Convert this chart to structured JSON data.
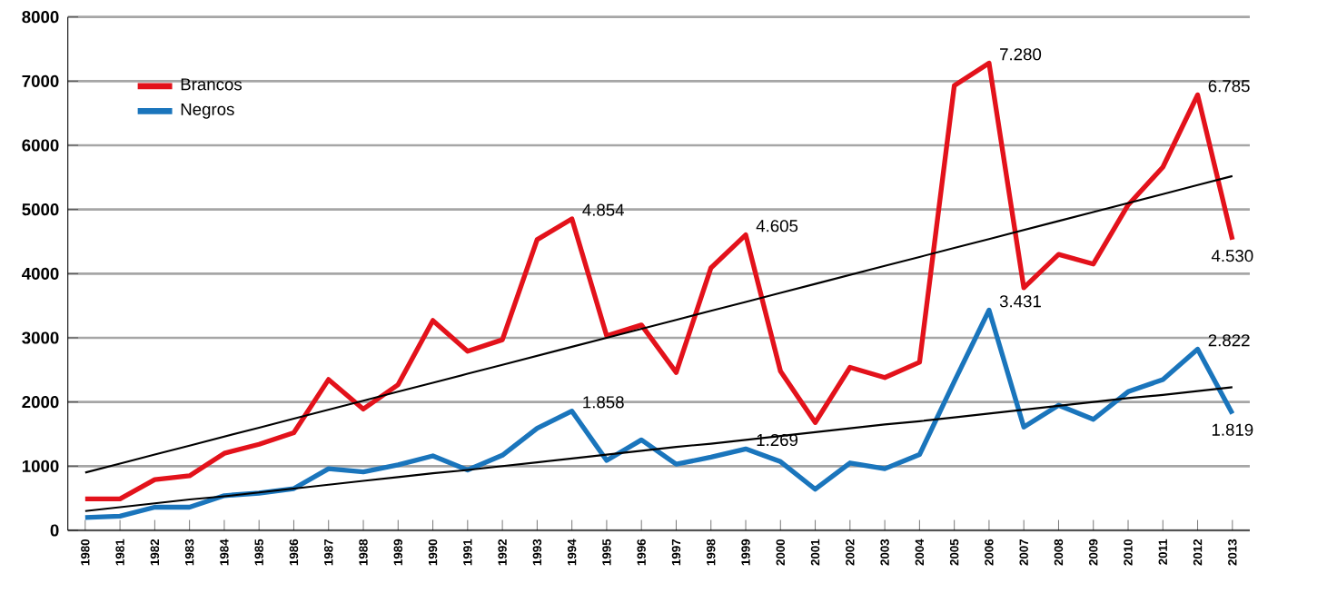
{
  "chart_data": {
    "type": "line",
    "categories": [
      "1980",
      "1981",
      "1982",
      "1983",
      "1984",
      "1985",
      "1986",
      "1987",
      "1988",
      "1989",
      "1990",
      "1991",
      "1992",
      "1993",
      "1994",
      "1995",
      "1996",
      "1997",
      "1998",
      "1999",
      "2000",
      "2001",
      "2002",
      "2003",
      "2004",
      "2005",
      "2006",
      "2007",
      "2008",
      "2009",
      "2010",
      "2011",
      "2012",
      "2013"
    ],
    "series": [
      {
        "name": "Brancos",
        "color": "#e3121b",
        "values": [
          490,
          490,
          790,
          850,
          1200,
          1340,
          1520,
          2350,
          1890,
          2270,
          3270,
          2790,
          2970,
          4530,
          4854,
          3030,
          3200,
          2460,
          4090,
          4605,
          2480,
          1680,
          2540,
          2380,
          2620,
          6930,
          7280,
          3780,
          4300,
          4150,
          5070,
          5660,
          6785,
          4530
        ],
        "value_labels": [
          null,
          null,
          null,
          null,
          null,
          null,
          null,
          null,
          null,
          null,
          null,
          null,
          null,
          null,
          "4.854",
          null,
          null,
          null,
          null,
          "4.605",
          null,
          null,
          null,
          null,
          null,
          null,
          "7.280",
          null,
          null,
          null,
          null,
          null,
          "6.785",
          "4.530"
        ]
      },
      {
        "name": "Negros",
        "color": "#1a75bc",
        "values": [
          200,
          220,
          360,
          360,
          540,
          580,
          650,
          960,
          910,
          1020,
          1160,
          940,
          1170,
          1590,
          1858,
          1090,
          1410,
          1030,
          1140,
          1269,
          1070,
          640,
          1050,
          960,
          1180,
          2320,
          3431,
          1610,
          1950,
          1730,
          2160,
          2350,
          2822,
          1819
        ],
        "value_labels": [
          null,
          null,
          null,
          null,
          null,
          null,
          null,
          null,
          null,
          null,
          null,
          null,
          null,
          null,
          "1.858",
          null,
          null,
          null,
          null,
          "1.269",
          null,
          null,
          null,
          null,
          null,
          null,
          "3.431",
          null,
          null,
          null,
          null,
          null,
          "2.822",
          "1.819"
        ]
      },
      {
        "color": "#000000",
        "values": [
          900,
          1040,
          1180,
          1320,
          1460,
          1600,
          1740,
          1880,
          2020,
          2160,
          2300,
          2440,
          2580,
          2720,
          2860,
          3000,
          3140,
          3280,
          3420,
          3560,
          3700,
          3840,
          3980,
          4120,
          4260,
          4400,
          4540,
          4680,
          4820,
          4960,
          5100,
          5240,
          5380,
          5520
        ]
      },
      {
        "color": "#000000",
        "values": [
          300,
          360,
          420,
          480,
          530,
          590,
          650,
          710,
          770,
          830,
          890,
          940,
          1000,
          1060,
          1120,
          1180,
          1240,
          1300,
          1350,
          1410,
          1470,
          1530,
          1590,
          1650,
          1700,
          1760,
          1820,
          1880,
          1940,
          2000,
          2060,
          2110,
          2170,
          2230
        ]
      }
    ],
    "ylim": [
      0,
      8000
    ],
    "yticks": [
      0,
      1000,
      2000,
      3000,
      4000,
      5000,
      6000,
      7000,
      8000
    ],
    "grid": "y",
    "legend": "top left",
    "marker": "none",
    "line_style": "solid"
  }
}
